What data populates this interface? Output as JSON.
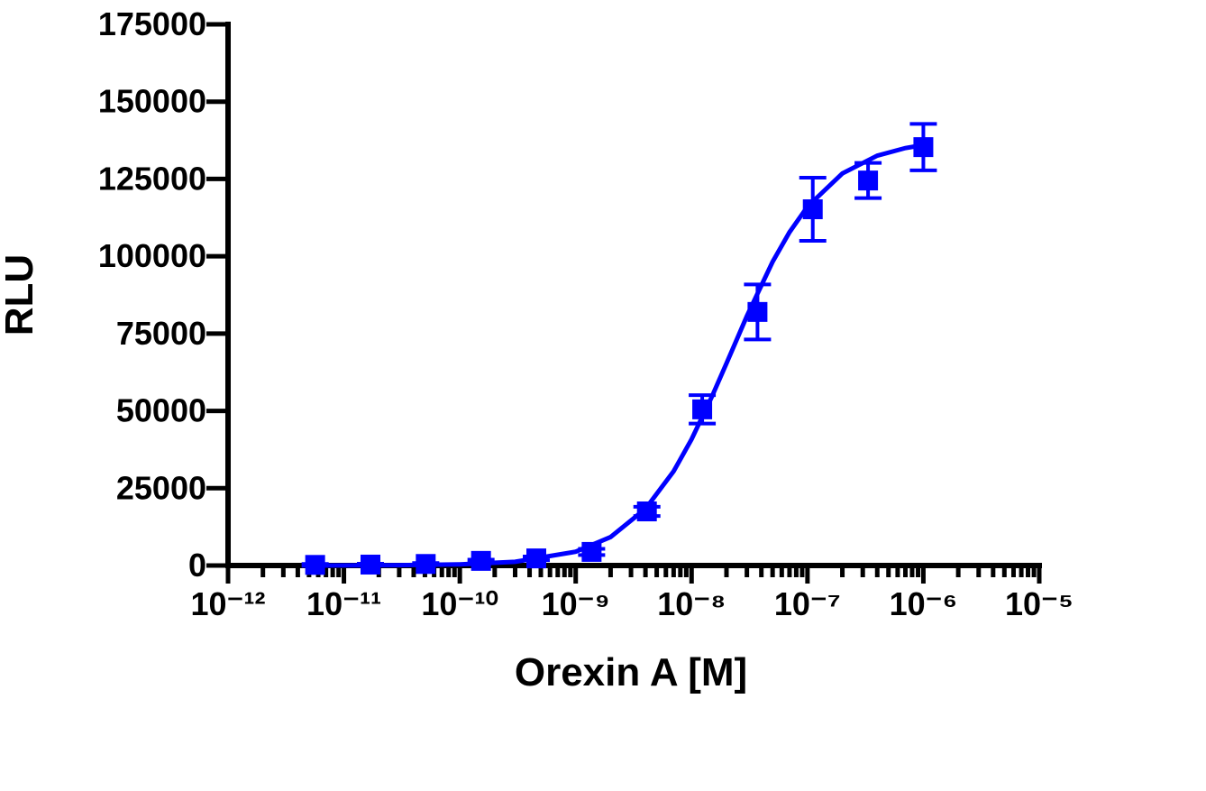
{
  "chart_data": {
    "type": "scatter",
    "xlabel": "Orexin A [M]",
    "ylabel": "RLU",
    "xscale": "log",
    "xlim": [
      1e-12,
      1e-05
    ],
    "ylim": [
      0,
      175000
    ],
    "xticks": [
      {
        "value": 1e-12,
        "label": "10⁻¹²"
      },
      {
        "value": 1e-11,
        "label": "10⁻¹¹"
      },
      {
        "value": 1e-10,
        "label": "10⁻¹⁰"
      },
      {
        "value": 1e-09,
        "label": "10⁻⁹"
      },
      {
        "value": 1e-08,
        "label": "10⁻⁸"
      },
      {
        "value": 1e-07,
        "label": "10⁻⁷"
      },
      {
        "value": 1e-06,
        "label": "10⁻⁶"
      },
      {
        "value": 1e-05,
        "label": "10⁻⁵"
      }
    ],
    "xminorticks": [
      2e-12,
      3e-12,
      4e-12,
      5e-12,
      6e-12,
      7e-12,
      8e-12,
      9e-12,
      2e-11,
      3e-11,
      4e-11,
      5e-11,
      6e-11,
      7e-11,
      8e-11,
      9e-11,
      2e-10,
      3e-10,
      4e-10,
      5e-10,
      6e-10,
      7e-10,
      8e-10,
      9e-10,
      2e-09,
      3e-09,
      4e-09,
      5e-09,
      6e-09,
      7e-09,
      8e-09,
      9e-09,
      2e-08,
      3e-08,
      4e-08,
      5e-08,
      6e-08,
      7e-08,
      8e-08,
      9e-08,
      2e-07,
      3e-07,
      4e-07,
      5e-07,
      6e-07,
      7e-07,
      8e-07,
      9e-07,
      2e-06,
      3e-06,
      4e-06,
      5e-06,
      6e-06,
      7e-06,
      8e-06,
      9e-06
    ],
    "yticks": [
      0,
      25000,
      50000,
      75000,
      100000,
      125000,
      150000,
      175000
    ],
    "series": [
      {
        "type": "scatter",
        "color": "#0000ff",
        "x": [
          5.645e-12,
          1.694e-11,
          5.081e-11,
          1.524e-10,
          4.572e-10,
          1.372e-09,
          4.115e-09,
          1.235e-08,
          3.704e-08,
          1.111e-07,
          3.333e-07,
          1e-06
        ],
        "values": [
          200,
          300,
          500,
          1500,
          2300,
          4400,
          17500,
          50500,
          82000,
          115200,
          124500,
          135300
        ],
        "errors": [
          300,
          300,
          300,
          400,
          600,
          1000,
          1500,
          4600,
          8900,
          10200,
          5700,
          7500
        ]
      },
      {
        "type": "line",
        "color": "#0000ff",
        "x": [
          5.645e-12,
          1e-11,
          3e-11,
          1e-10,
          3e-10,
          1e-09,
          2e-09,
          4e-09,
          7e-09,
          1e-08,
          1.5e-08,
          2e-08,
          3e-08,
          5e-08,
          7e-08,
          1e-07,
          2e-07,
          4e-07,
          7e-07,
          1e-06
        ],
        "values": [
          16,
          29,
          97,
          365,
          1213,
          4457,
          9206,
          18350,
          30470,
          40830,
          54700,
          65360,
          80660,
          98200,
          107800,
          116060,
          126800,
          132540,
          135000,
          135960
        ]
      }
    ]
  }
}
